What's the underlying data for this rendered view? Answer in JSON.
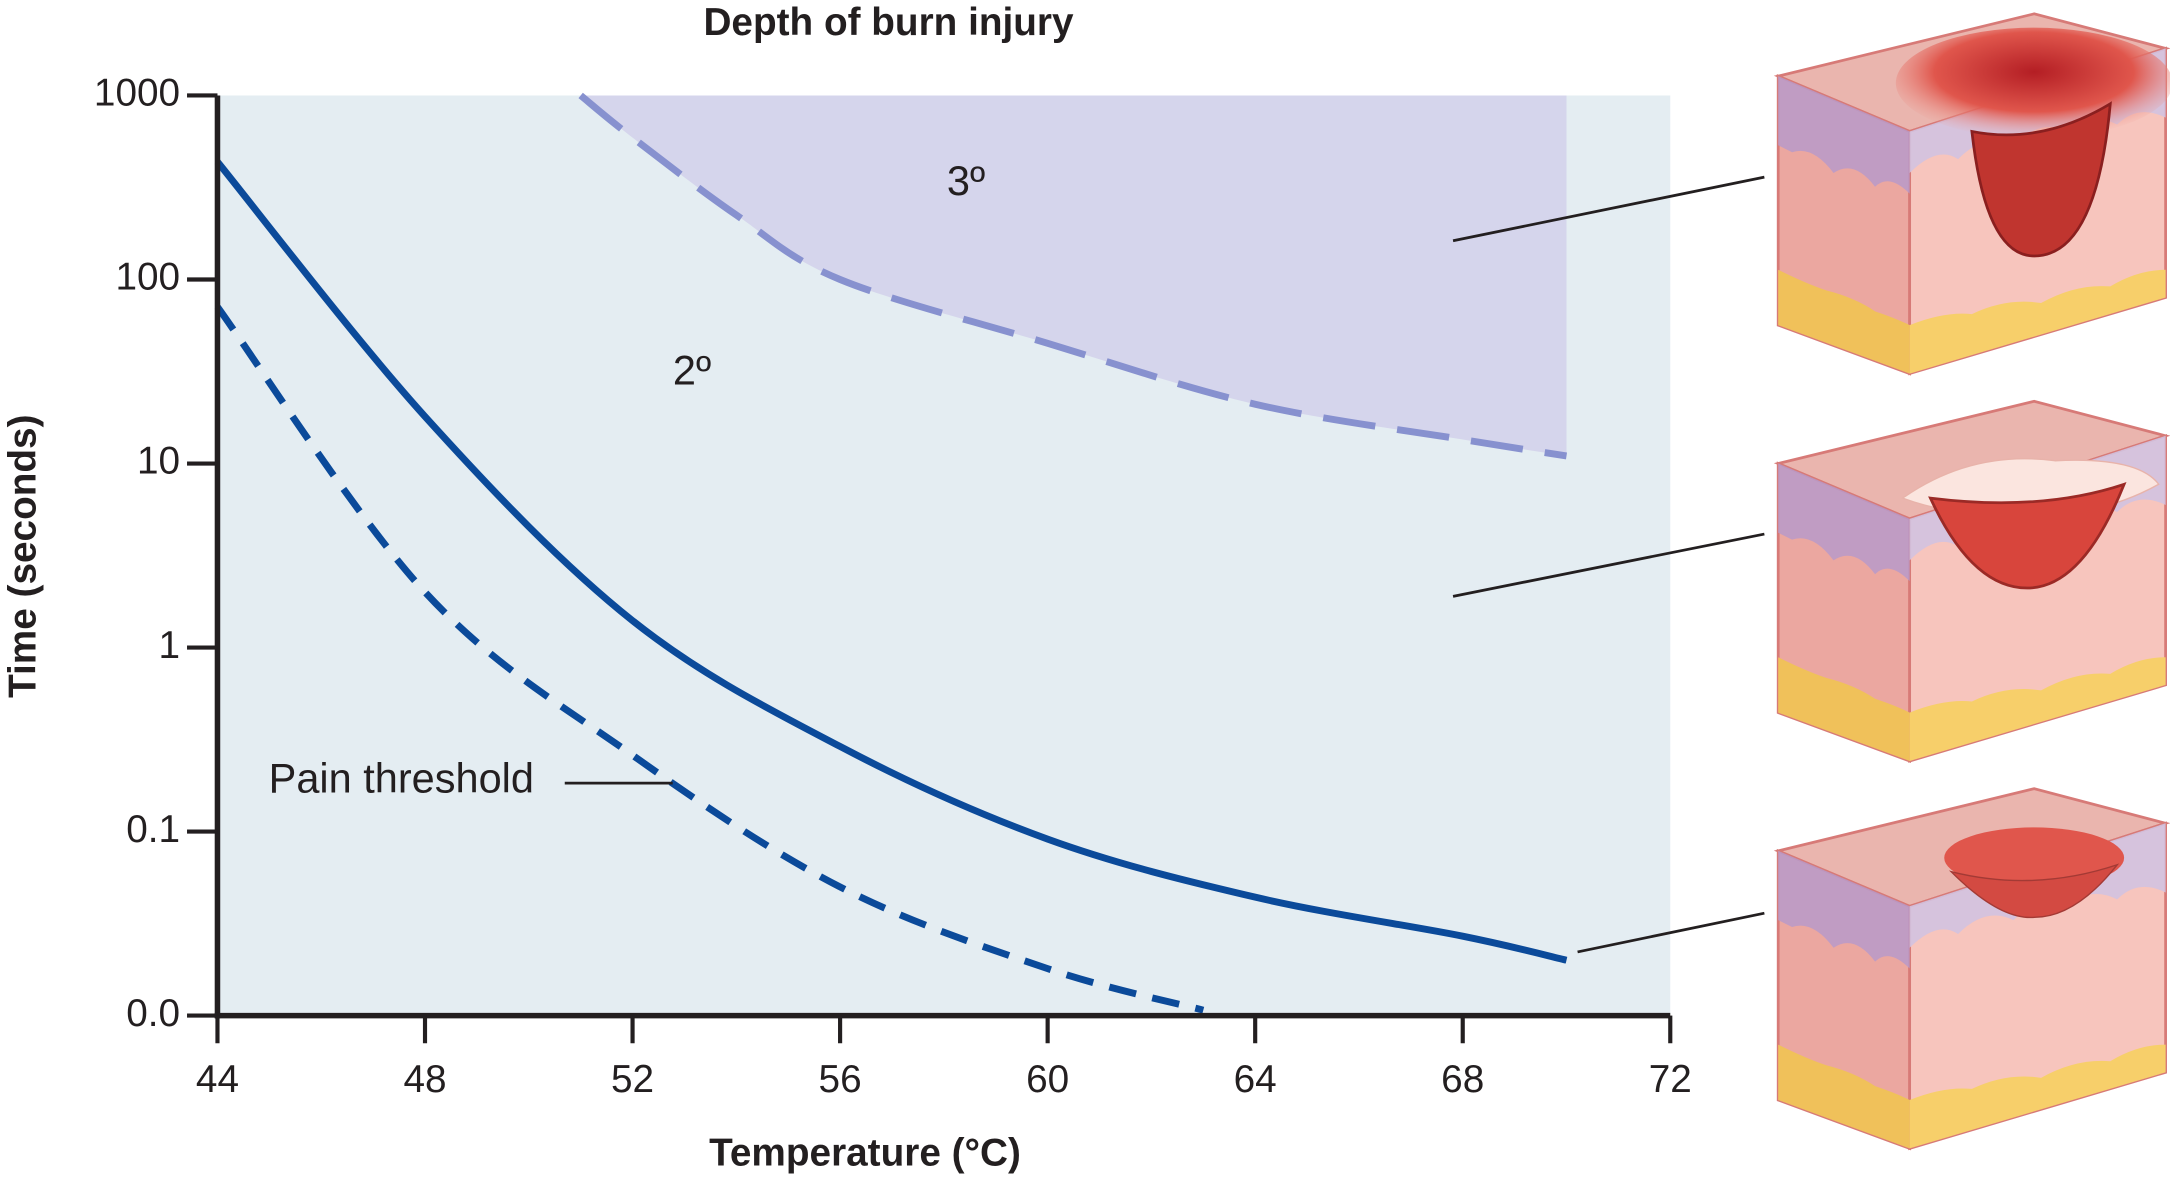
{
  "chart_data": {
    "type": "line",
    "title": "Depth of burn injury",
    "x_label": "Temperature (°C)",
    "y_label": "Time (seconds)",
    "log_y": true,
    "xlim": [
      44,
      72
    ],
    "xticks": [
      44,
      48,
      52,
      56,
      60,
      64,
      68,
      72
    ],
    "ylim": [
      0.01,
      1000
    ],
    "yticks": [
      {
        "value": 0.01,
        "label": "0.0"
      },
      0.1,
      1,
      10,
      100,
      1000
    ],
    "background_color": "#e4edf2",
    "series": [
      {
        "color": "#8791cf",
        "dash": "long",
        "fill_above": "#d5d5ec",
        "x": [
          51,
          52,
          54,
          56,
          60,
          64,
          68,
          70
        ],
        "values": [
          1000,
          590,
          224,
          100,
          45,
          21,
          13.5,
          11
        ]
      },
      {
        "color": "#0b4a9a",
        "dash": "solid",
        "x": [
          44,
          48,
          52,
          56,
          60,
          64,
          68,
          70
        ],
        "values": [
          436,
          18,
          1.4,
          0.29,
          0.091,
          0.044,
          0.027,
          0.02
        ]
      },
      {
        "name": "Pain threshold",
        "color": "#0b4a9a",
        "dash": "short",
        "x": [
          44,
          48,
          52,
          56,
          60,
          63
        ],
        "values": [
          71,
          2,
          0.26,
          0.05,
          0.018,
          0.0107
        ]
      }
    ],
    "annotations": [
      "3º",
      "2º"
    ]
  }
}
